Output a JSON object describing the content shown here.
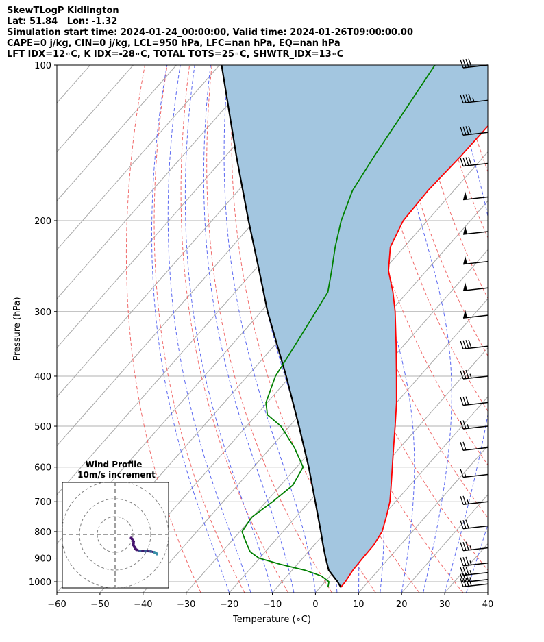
{
  "header": {
    "line1": "SkewTLogP Kidlington",
    "line2": "Lat: 51.84   Lon: -1.32",
    "line3": "Simulation start time: 2024-01-24_00:00:00, Valid time: 2024-01-26T09:00:00.00",
    "line4": "CAPE=0 j/kg, CIN=0 j/kg, LCL=950 hPa, LFC=nan hPa, EQ=nan hPa",
    "line5": "LFT IDX=12∘C, K IDX=-28∘C, TOTAL TOTS=25∘C, SHWTR_IDX=13∘C"
  },
  "chart_data": {
    "type": "line",
    "subtype": "skew-T log-P diagram",
    "xlabel": "Temperature (∘C)",
    "ylabel": "Pressure (hPa)",
    "xlim": [
      -60,
      40
    ],
    "ylim": [
      1050,
      100
    ],
    "x_ticks": [
      -60,
      -50,
      -40,
      -30,
      -20,
      -10,
      0,
      10,
      20,
      30,
      40
    ],
    "y_ticks": [
      1000,
      900,
      800,
      700,
      600,
      500,
      400,
      300,
      200,
      100
    ],
    "pressure_scale": "log",
    "grid": true,
    "series": [
      {
        "role": "temperature",
        "color": "#ff0000",
        "pressure": [
          1025,
          1000,
          950,
          900,
          850,
          800,
          750,
          700,
          650,
          600,
          550,
          500,
          450,
          400,
          350,
          300,
          275,
          250,
          225,
          200,
          175,
          150,
          125,
          100
        ],
        "values": [
          4.8,
          4.7,
          4.1,
          3.9,
          3.8,
          3.0,
          1.0,
          -1.3,
          -4.4,
          -7.8,
          -11.5,
          -15.5,
          -20.0,
          -25.4,
          -31.6,
          -38.9,
          -43.4,
          -48.8,
          -53.2,
          -55.6,
          -56.0,
          -55.4,
          -55.2,
          -55.5
        ]
      },
      {
        "role": "dewpoint",
        "color": "#008000",
        "pressure": [
          1025,
          1000,
          975,
          950,
          925,
          900,
          875,
          850,
          825,
          800,
          750,
          700,
          650,
          600,
          550,
          500,
          475,
          450,
          400,
          350,
          300,
          275,
          250,
          225,
          200,
          175,
          150,
          125,
          100
        ],
        "values": [
          1.8,
          0.9,
          -2.0,
          -7.0,
          -14.0,
          -20.2,
          -23.5,
          -25.5,
          -27.5,
          -29.5,
          -30.2,
          -28.5,
          -27.2,
          -28.5,
          -34.5,
          -42.0,
          -47.5,
          -50.3,
          -53.5,
          -55.2,
          -57.3,
          -58.5,
          -62.0,
          -66.0,
          -70.0,
          -73.5,
          -75.5,
          -77.5,
          -80.0
        ]
      },
      {
        "role": "parcel",
        "color": "#000000",
        "pressure": [
          1025,
          1000,
          950,
          900,
          850,
          800,
          700,
          600,
          500,
          400,
          300,
          250,
          200,
          150,
          100
        ],
        "values": [
          4.8,
          2.9,
          -1.5,
          -4.7,
          -7.9,
          -11.2,
          -18.6,
          -27.2,
          -37.8,
          -51.0,
          -68.5,
          -78.8,
          -91.5,
          -107.5,
          -129.5
        ]
      }
    ],
    "wind_barbs": {
      "pressure": [
        100,
        117,
        135,
        155,
        180,
        210,
        240,
        270,
        305,
        350,
        400,
        450,
        500,
        550,
        620,
        700,
        780,
        860,
        920,
        960,
        990,
        1010
      ],
      "speed_kt": [
        40,
        45,
        40,
        40,
        50,
        50,
        50,
        50,
        50,
        40,
        35,
        30,
        25,
        20,
        15,
        25,
        30,
        35,
        35,
        35,
        35,
        40
      ]
    },
    "inset": {
      "title": "Wind Profile",
      "subtitle": "10m/s increment",
      "hodograph": [
        [
          9,
          -2
        ],
        [
          9.5,
          -2.5
        ],
        [
          10,
          -3
        ],
        [
          10.4,
          -4
        ],
        [
          10.3,
          -5
        ],
        [
          10.3,
          -6
        ],
        [
          10.8,
          -7
        ],
        [
          11.4,
          -8
        ],
        [
          12,
          -8.6
        ],
        [
          14,
          -9.2
        ],
        [
          17,
          -9.4
        ],
        [
          20,
          -9.5
        ],
        [
          22,
          -10
        ],
        [
          23,
          -10.5
        ],
        [
          23.5,
          -11
        ]
      ]
    }
  }
}
